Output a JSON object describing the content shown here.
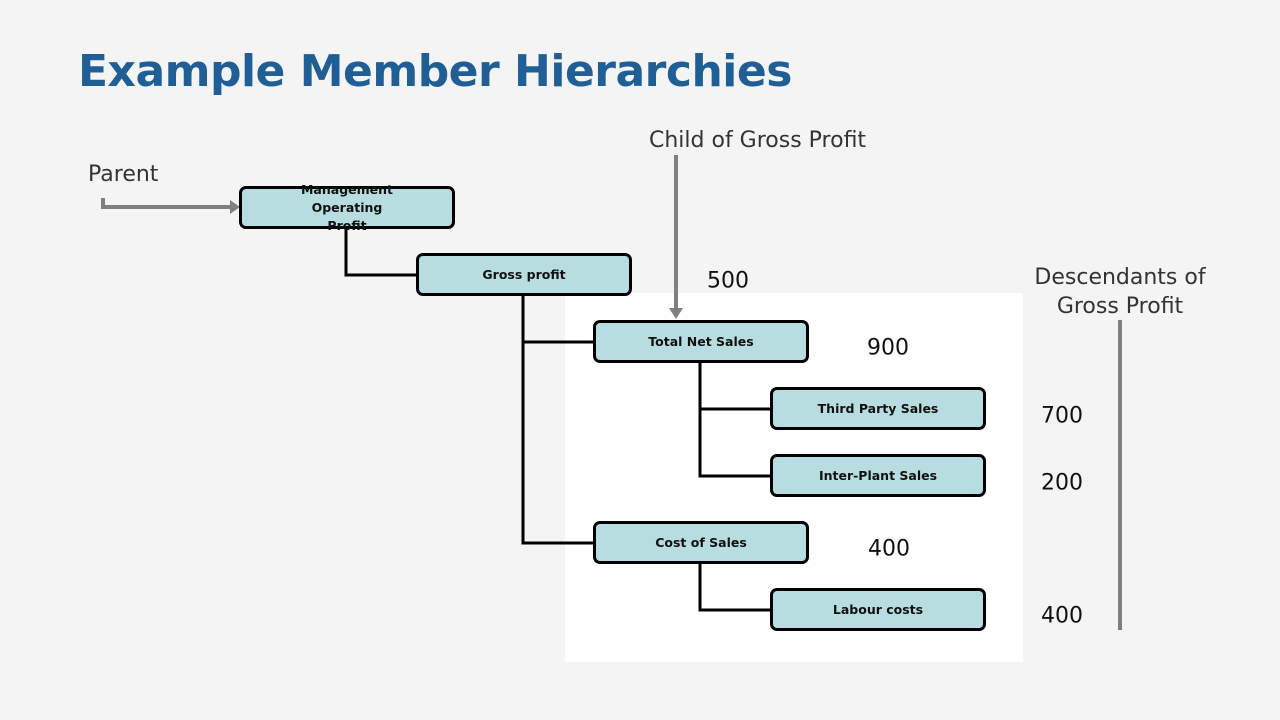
{
  "title": "Example Member Hierarchies",
  "labels": {
    "parent": "Parent",
    "child_of": "Child of Gross Profit",
    "descendants_line1": "Descendants of",
    "descendants_line2": "Gross Profit"
  },
  "nodes": {
    "mop": {
      "label": "Management Operating Profit"
    },
    "gross_profit": {
      "label": "Gross profit",
      "value": "500"
    },
    "total_net_sales": {
      "label": "Total Net Sales",
      "value": "900"
    },
    "third_party_sales": {
      "label": "Third Party Sales",
      "value": "700"
    },
    "inter_plant_sales": {
      "label": "Inter-Plant Sales",
      "value": "200"
    },
    "cost_of_sales": {
      "label": "Cost of Sales",
      "value": "400"
    },
    "labour_costs": {
      "label": "Labour costs",
      "value": "400"
    }
  },
  "colors": {
    "title": "#1f5f95",
    "node_fill": "#b8dde0",
    "arrow": "#808080"
  }
}
